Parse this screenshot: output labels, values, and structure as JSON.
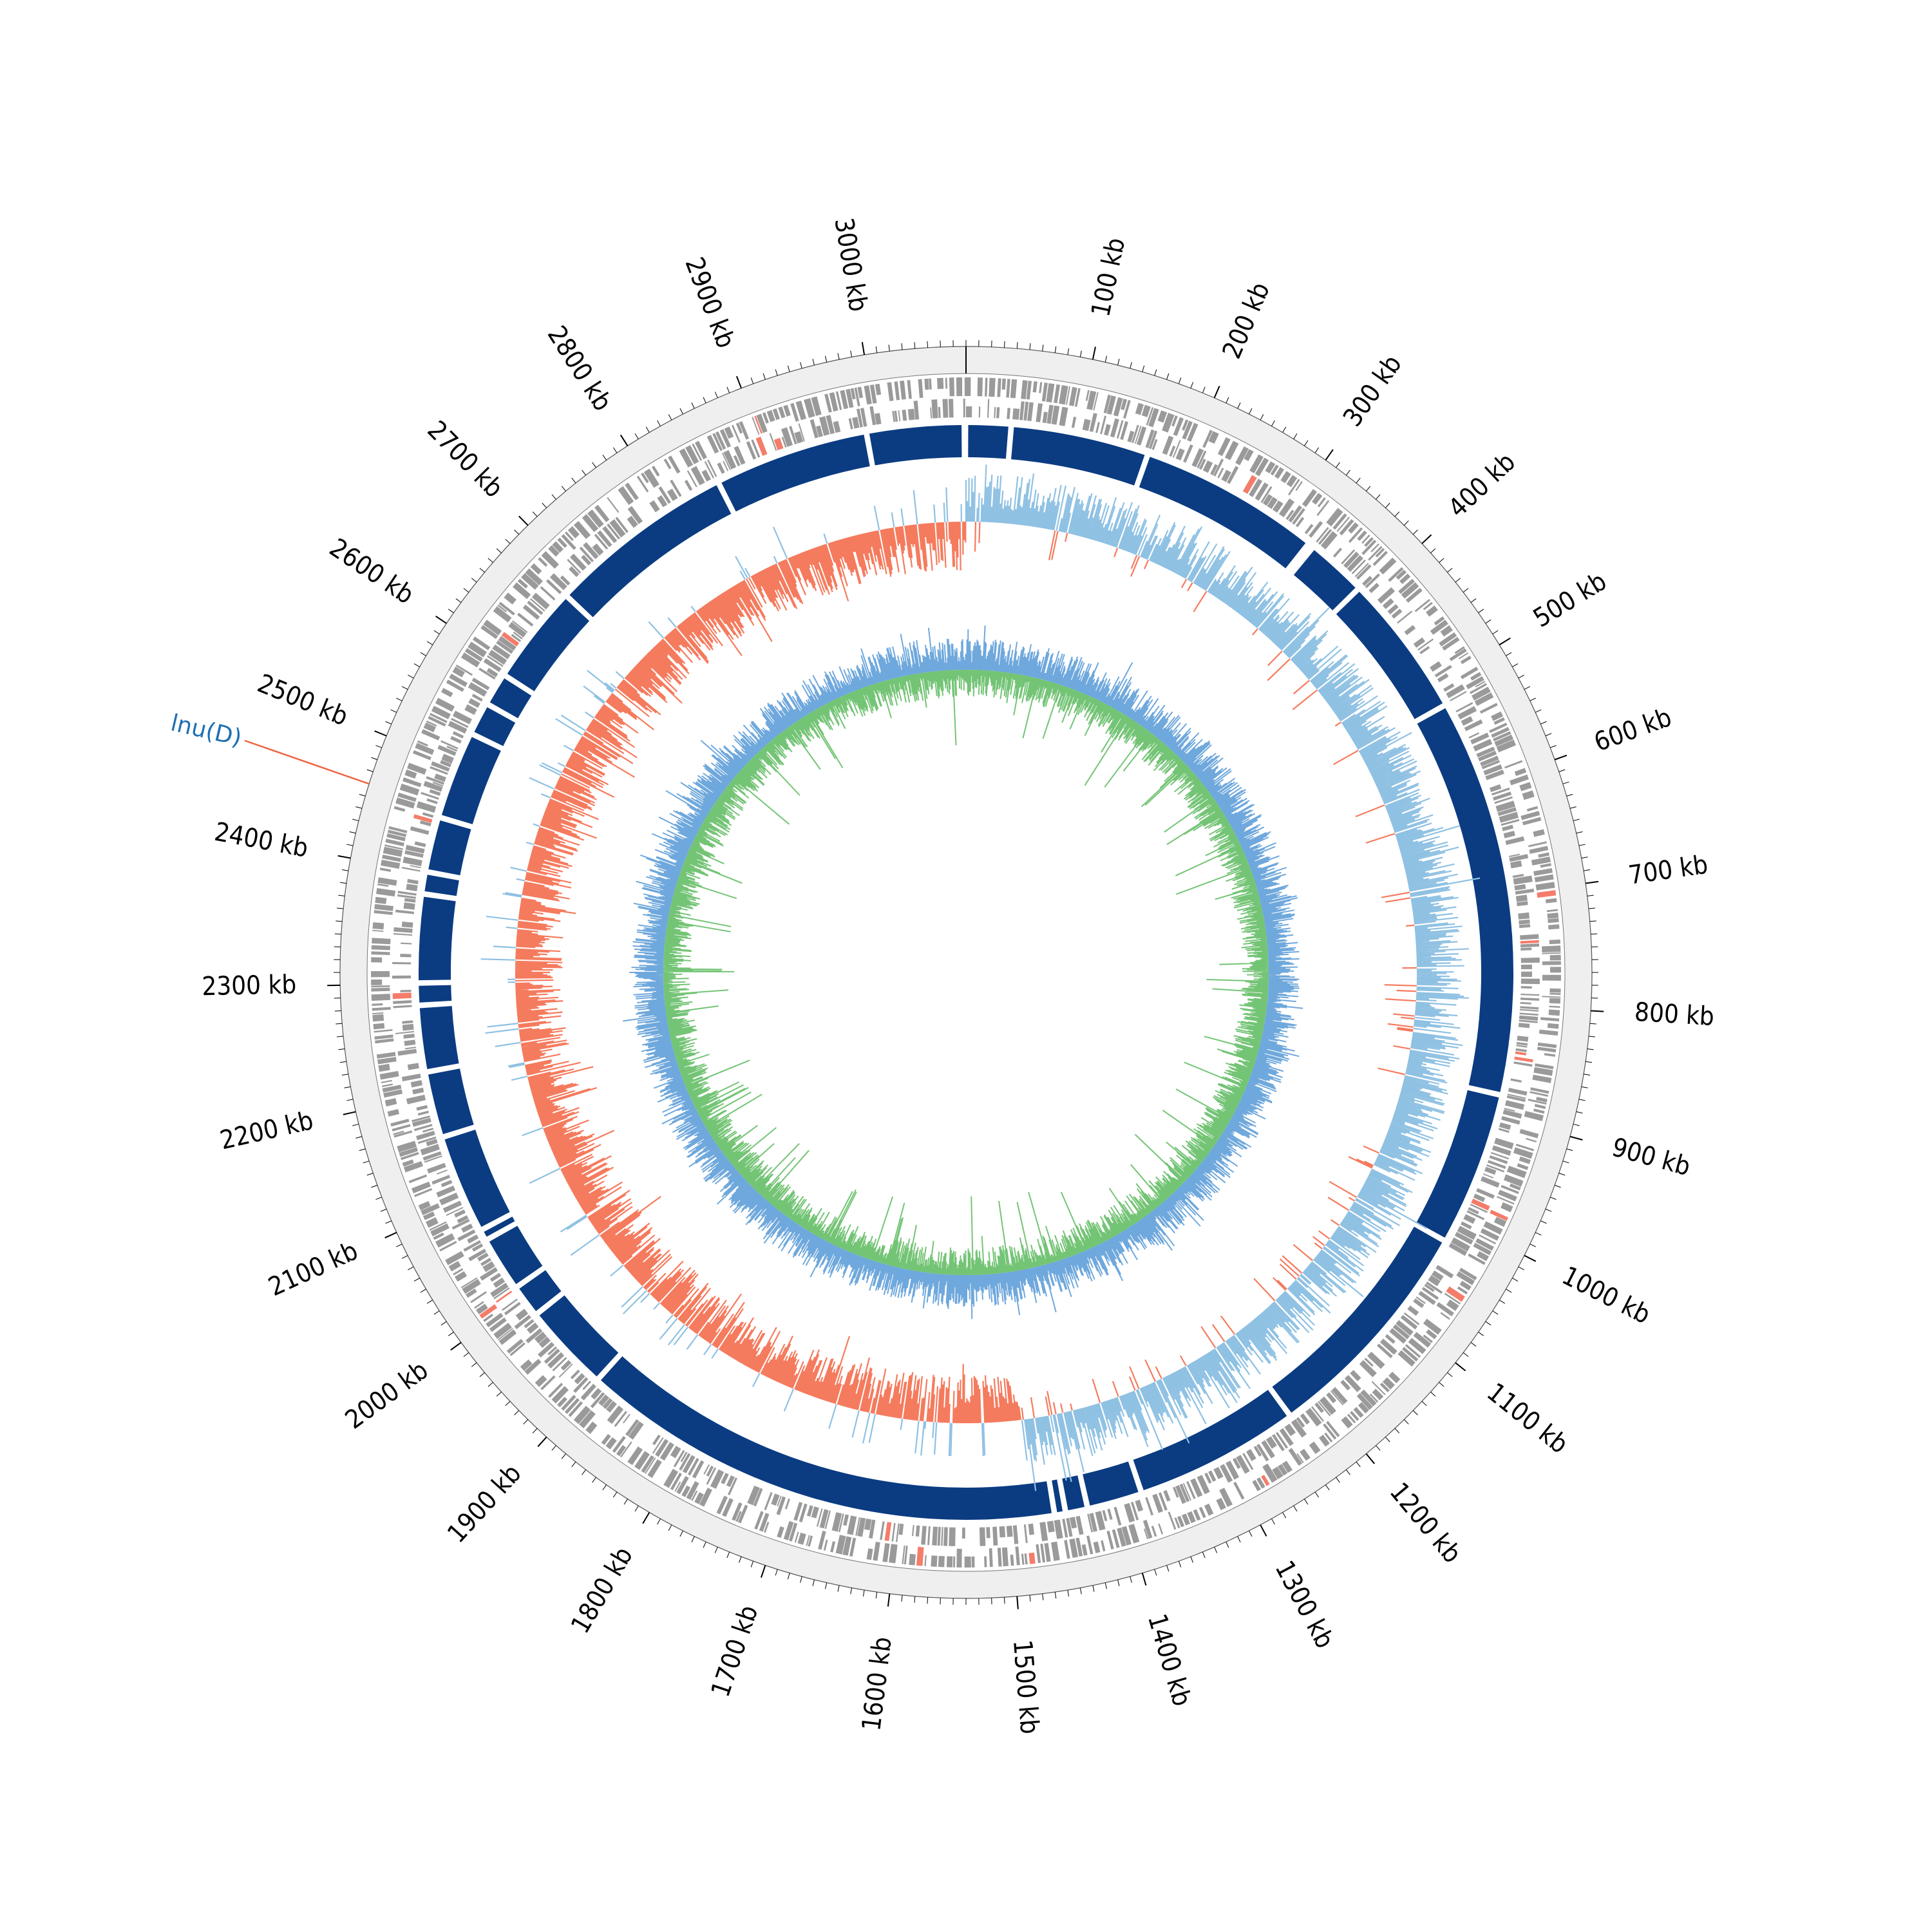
{
  "figure": {
    "genome_length_kb": 3080,
    "tick_unit": "kb",
    "major_ticks_kb": [
      100,
      200,
      300,
      400,
      500,
      600,
      700,
      800,
      900,
      1000,
      1100,
      1200,
      1300,
      1400,
      1500,
      1600,
      1700,
      1800,
      1900,
      2000,
      2100,
      2200,
      2300,
      2400,
      2500,
      2600,
      2700,
      2800,
      2900,
      3000
    ],
    "major_tick_labels": [
      "100 kb",
      "200 kb",
      "300 kb",
      "400 kb",
      "500 kb",
      "600 kb",
      "700 kb",
      "800 kb",
      "900 kb",
      "1000 kb",
      "1100 kb",
      "1200 kb",
      "1300 kb",
      "1400 kb",
      "1500 kb",
      "1600 kb",
      "1700 kb",
      "1800 kb",
      "1900 kb",
      "2000 kb",
      "2100 kb",
      "2200 kb",
      "2300 kb",
      "2400 kb",
      "2500 kb",
      "2600 kb",
      "2700 kb",
      "2800 kb",
      "2900 kb",
      "3000 kb"
    ],
    "minor_tick_step_kb": 10
  },
  "annotations": [
    {
      "label": "lnu(D)",
      "position_kb": 2460,
      "label_color": "#1f6fb2",
      "line_color": "#f06543"
    }
  ],
  "colors": {
    "outer_ring": "#efefef",
    "gene_gray": "#9a9a9a",
    "gene_highlight": "#f47c6a",
    "contig_blue": "#0b3c82",
    "gc_content_high": "#8fc1e3",
    "gc_content_low": "#f57b5e",
    "gc_skew_outer": "#6fa8dc",
    "gc_skew_inner": "#74c476"
  },
  "contig_gaps_kb": [
    40,
    165,
    330,
    335,
    390,
    520,
    880,
    1020,
    1230,
    1380,
    1430,
    1450,
    1460,
    1460,
    1900,
    1980,
    2010,
    2060,
    2070,
    2160,
    2220,
    2280,
    2300,
    2380,
    2400,
    2450,
    2530,
    2560,
    2590,
    2680,
    2850,
    2990
  ]
}
